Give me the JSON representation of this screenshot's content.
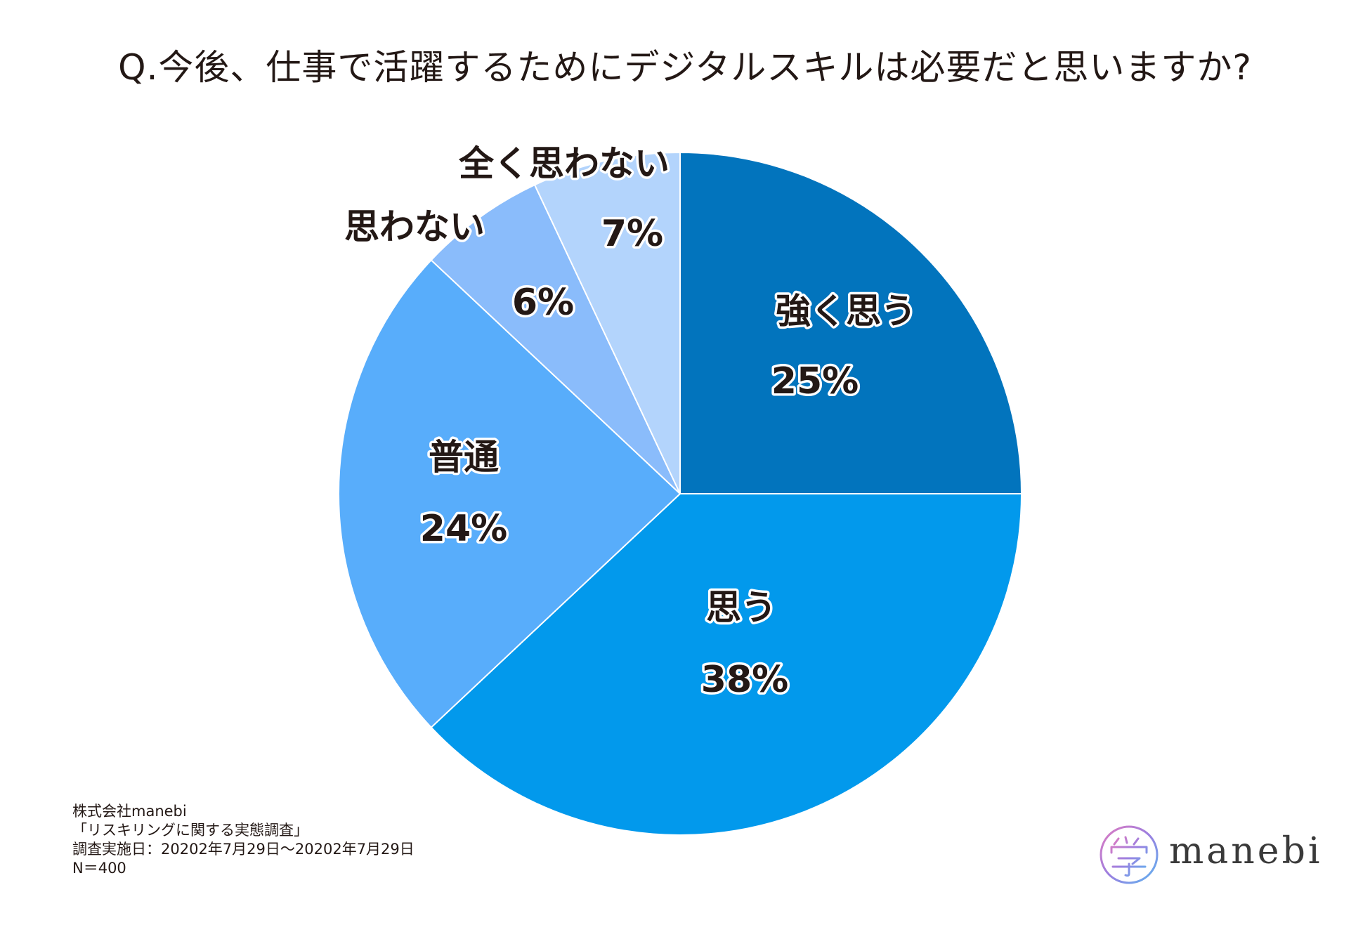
{
  "chart_data": {
    "type": "pie",
    "title": "Q.今後、仕事で活躍するためにデジタルスキルは必要だと思いますか?",
    "start": "12 o'clock, clockwise",
    "slices": [
      {
        "label": "強く思う",
        "value": 25,
        "value_label": "25%",
        "color": "#0274bd"
      },
      {
        "label": "思う",
        "value": 38,
        "value_label": "38%",
        "color": "#0299ec"
      },
      {
        "label": "普通",
        "value": 24,
        "value_label": "24%",
        "color": "#58adfb"
      },
      {
        "label": "思わない",
        "value": 6,
        "value_label": "6%",
        "color": "#8abcfb"
      },
      {
        "label": "全く思わない",
        "value": 7,
        "value_label": "7%",
        "color": "#b3d4fc"
      }
    ]
  },
  "footnote": {
    "company": "株式会社manebi",
    "survey": "「リスキリングに関する実態調査」",
    "period": "調査実施日：20202年7月29日〜20202年7月29日",
    "sample": "N＝400"
  },
  "logo": {
    "text": "manebi"
  }
}
